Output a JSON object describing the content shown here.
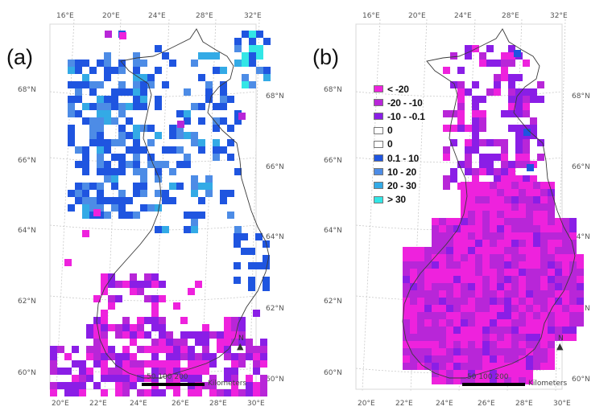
{
  "panels": [
    {
      "label": "(a)",
      "top_ticks": [
        "16°E",
        "20°E",
        "24°E",
        "28°E",
        "32°E"
      ],
      "bottom_ticks": [
        "20°E",
        "22°E",
        "24°E",
        "26°E",
        "28°E",
        "30°E"
      ],
      "left_ticks": [
        "68°N",
        "66°N",
        "64°N",
        "62°N",
        "60°N"
      ],
      "right_ticks": [
        "68°N",
        "66°N",
        "64°N",
        "62°N",
        "60°N"
      ]
    },
    {
      "label": "(b)",
      "top_ticks": [
        "16°E",
        "20°E",
        "24°E",
        "28°E",
        "32°E"
      ],
      "bottom_ticks": [
        "20°E",
        "22°E",
        "24°E",
        "26°E",
        "28°E",
        "30°E"
      ],
      "left_ticks": [
        "68°N",
        "66°N",
        "64°N",
        "62°N",
        "60°N"
      ],
      "right_ticks": [
        "68°N",
        "66°N",
        "64°N",
        "62°N",
        "60°N"
      ]
    }
  ],
  "legend": [
    {
      "label": "< -20",
      "color": "#ee22dd"
    },
    {
      "label": "-20 - -10",
      "color": "#b826d8"
    },
    {
      "label": "-10 - -0.1",
      "color": "#8a1ee6"
    },
    {
      "label": "0",
      "color": "#ffffff"
    },
    {
      "label": "0",
      "color": "#ffffff"
    },
    {
      "label": "0.1 - 10",
      "color": "#1f55e0"
    },
    {
      "label": "10 - 20",
      "color": "#4d8ce6"
    },
    {
      "label": "20 - 30",
      "color": "#33aae6"
    },
    {
      "label": "> 30",
      "color": "#33e6e6"
    }
  ],
  "scalebar": {
    "ticks": "50 100 200",
    "unit": "Kilometers"
  },
  "north_label": "N",
  "colors": {
    "border": "#3a3a3a",
    "graticule": "#c8c8c8"
  }
}
